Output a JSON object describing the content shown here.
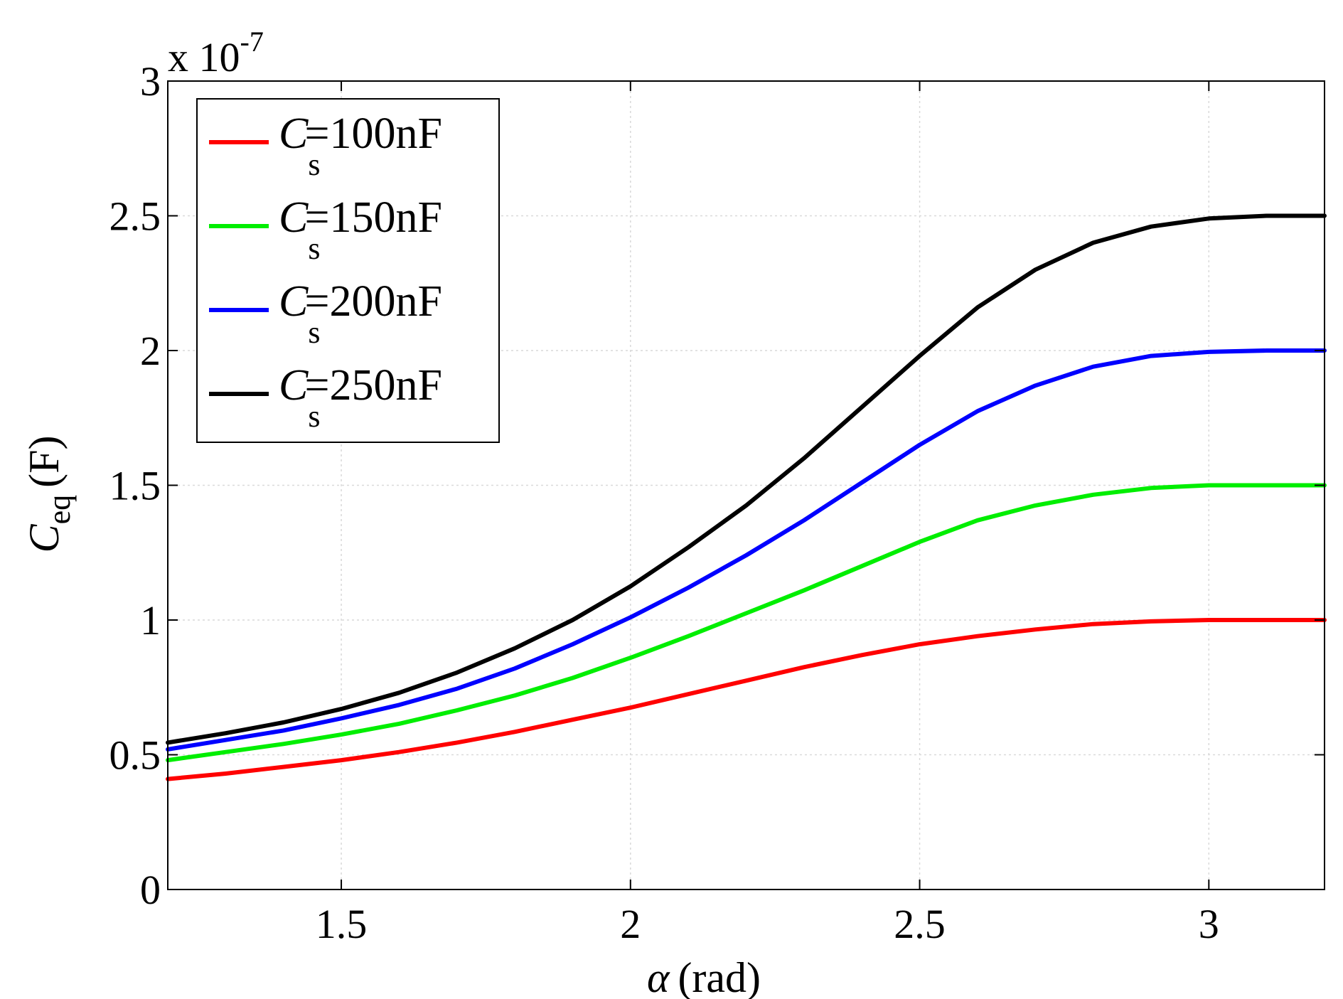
{
  "chart_data": {
    "type": "line",
    "xlabel_symbol": "α",
    "xlabel_unit": "(rad)",
    "ylabel_symbol": "C",
    "ylabel_subscript": "eq",
    "ylabel_unit": "(F)",
    "y_multiplier_prefix": "x 10",
    "y_multiplier_exponent": "-7",
    "xlim": [
      1.2,
      3.2
    ],
    "ylim": [
      0,
      3
    ],
    "x_ticks": [
      1.5,
      2,
      2.5,
      3
    ],
    "x_tick_labels": [
      "1.5",
      "2",
      "2.5",
      "3"
    ],
    "y_ticks": [
      0,
      0.5,
      1,
      1.5,
      2,
      2.5,
      3
    ],
    "y_tick_labels": [
      "0",
      "0.5",
      "1",
      "1.5",
      "2",
      "2.5",
      "3"
    ],
    "grid": true,
    "legend_position": "top-left",
    "x": [
      1.2,
      1.3,
      1.4,
      1.5,
      1.6,
      1.7,
      1.8,
      1.9,
      2.0,
      2.1,
      2.2,
      2.3,
      2.4,
      2.5,
      2.6,
      2.7,
      2.8,
      2.9,
      3.0,
      3.1,
      3.2
    ],
    "series": [
      {
        "name": "100nF",
        "legend_symbol": "C",
        "legend_subscript": "s",
        "legend_value": "=100nF",
        "color": "#ff0000",
        "values": [
          0.41,
          0.43,
          0.455,
          0.48,
          0.51,
          0.545,
          0.585,
          0.63,
          0.675,
          0.725,
          0.775,
          0.825,
          0.87,
          0.91,
          0.94,
          0.965,
          0.985,
          0.995,
          1.0,
          1.0,
          1.0
        ]
      },
      {
        "name": "150nF",
        "legend_symbol": "C",
        "legend_subscript": "s",
        "legend_value": "=150nF",
        "color": "#00ee00",
        "values": [
          0.48,
          0.51,
          0.54,
          0.575,
          0.615,
          0.665,
          0.72,
          0.785,
          0.86,
          0.94,
          1.025,
          1.11,
          1.2,
          1.29,
          1.37,
          1.425,
          1.465,
          1.49,
          1.5,
          1.5,
          1.5
        ]
      },
      {
        "name": "200nF",
        "legend_symbol": "C",
        "legend_subscript": "s",
        "legend_value": "=200nF",
        "color": "#0000ff",
        "values": [
          0.52,
          0.555,
          0.59,
          0.635,
          0.685,
          0.745,
          0.82,
          0.91,
          1.01,
          1.12,
          1.24,
          1.37,
          1.51,
          1.65,
          1.775,
          1.87,
          1.94,
          1.98,
          1.995,
          2.0,
          2.0
        ]
      },
      {
        "name": "250nF",
        "legend_symbol": "C",
        "legend_subscript": "s",
        "legend_value": "=250nF",
        "color": "#000000",
        "values": [
          0.545,
          0.58,
          0.62,
          0.67,
          0.73,
          0.805,
          0.895,
          1.0,
          1.125,
          1.27,
          1.425,
          1.6,
          1.79,
          1.98,
          2.16,
          2.3,
          2.4,
          2.46,
          2.49,
          2.5,
          2.5
        ]
      }
    ]
  }
}
